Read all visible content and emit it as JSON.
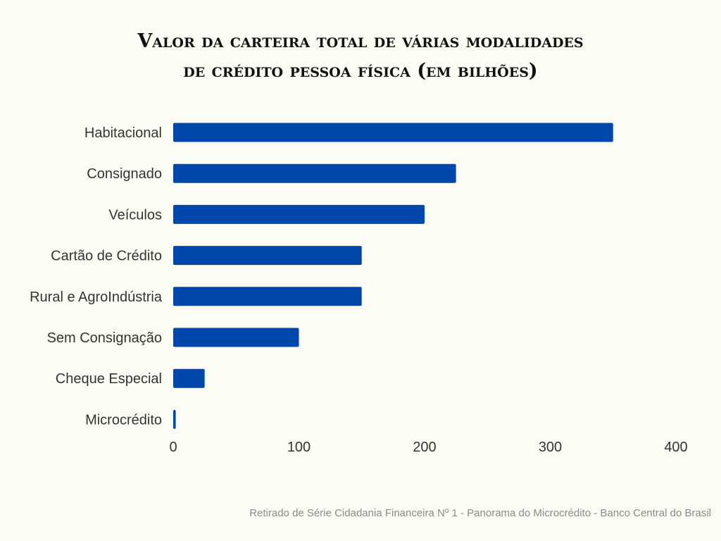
{
  "title_line1": "Valor da carteira total de várias modalidades",
  "title_line2": "de crédito pessoa física (em bilhões)",
  "source": "Retirado de Série Cidadania Financeira Nº 1 - Panorama do Microcrédito - Banco Central do Brasil",
  "colors": {
    "bar": "#0047ab",
    "background": "#fdfdf5"
  },
  "chart_data": {
    "type": "bar",
    "orientation": "horizontal",
    "title": "Valor da carteira total de várias modalidades de crédito pessoa física (em bilhões)",
    "categories": [
      "Habitacional",
      "Consignado",
      "Veículos",
      "Cartão de Crédito",
      "Rural e AgroIndústria",
      "Sem Consignação",
      "Cheque Especial",
      "Microcrédito"
    ],
    "values": [
      350,
      225,
      200,
      150,
      150,
      100,
      25,
      2
    ],
    "xlim": [
      0,
      400
    ],
    "xticks": [
      "0",
      "100",
      "200",
      "300",
      "400"
    ],
    "xtick_values": [
      0,
      100,
      200,
      300,
      400
    ],
    "grid": false,
    "legend": "none"
  }
}
